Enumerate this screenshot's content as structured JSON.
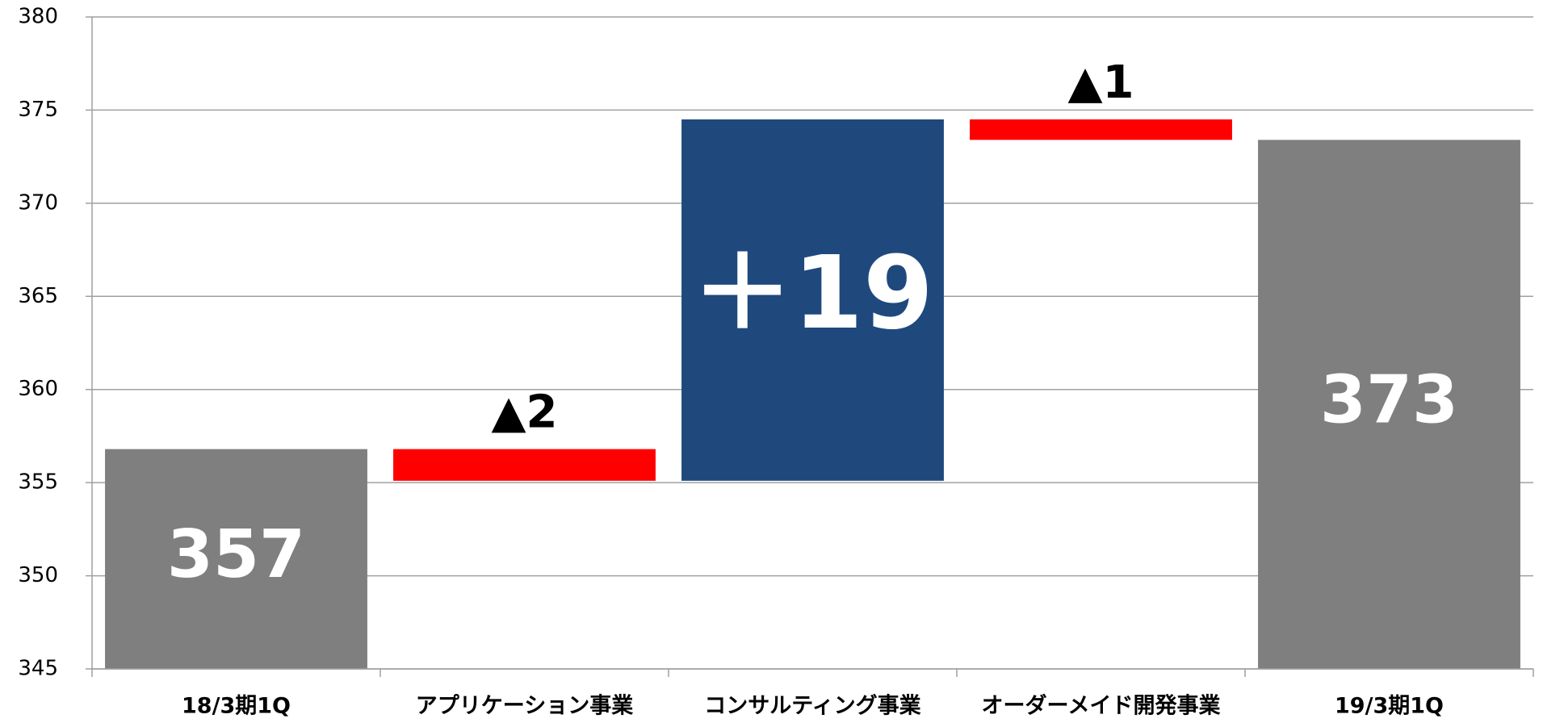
{
  "chart_data": {
    "type": "waterfall",
    "categories": [
      "18/3期1Q",
      "アプリケーション事業",
      "コンサルティング事業",
      "オーダーメイド開発事業",
      "19/3期1Q"
    ],
    "values": [
      356.8,
      -1.7,
      19.4,
      -1.1,
      373.4
    ],
    "value_labels": [
      "357",
      "▲2",
      "＋19",
      "▲1",
      "373"
    ],
    "measure": [
      "absolute",
      "relative",
      "relative",
      "relative",
      "absolute"
    ],
    "colors": {
      "total": "#7f7f7f",
      "increase": "#1f497d",
      "decrease": "#ff0000"
    },
    "ylim": [
      345,
      380
    ],
    "yticks": [
      345,
      350,
      355,
      360,
      365,
      370,
      375,
      380
    ],
    "grid": true
  }
}
